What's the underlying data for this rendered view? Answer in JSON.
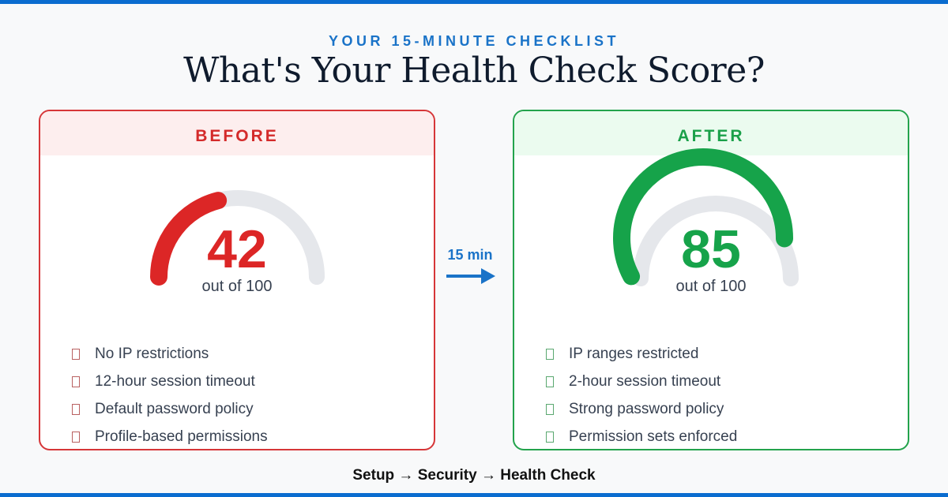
{
  "header": {
    "kicker": "YOUR 15-MINUTE CHECKLIST",
    "title": "What's Your Health Check Score?"
  },
  "before": {
    "label": "BEFORE",
    "score": 42,
    "out_of": "out of 100",
    "color": "#dc2626",
    "items": [
      "No IP restrictions",
      "12-hour session timeout",
      "Default password policy",
      "Profile-based permissions"
    ]
  },
  "after": {
    "label": "AFTER",
    "score": 85,
    "out_of": "out of 100",
    "color": "#16a34a",
    "items": [
      "IP ranges restricted",
      "2-hour session timeout",
      "Strong password policy",
      "Permission sets enforced"
    ]
  },
  "transition": {
    "label": "15 min",
    "icon": "arrow-right-icon"
  },
  "footer": {
    "path": "Setup → Security → Health Check"
  },
  "colors": {
    "accent": "#0a6ccf",
    "track": "#e5e7eb"
  }
}
